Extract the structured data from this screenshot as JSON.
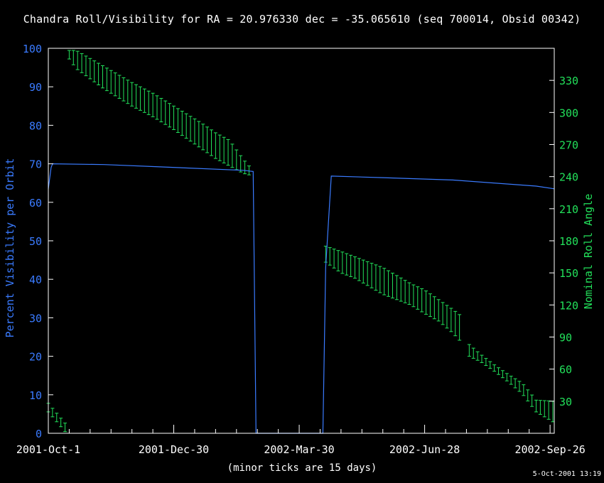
{
  "chart_data": {
    "type": "line",
    "title": "Chandra Roll/Visibility for RA = 20.976330 dec = -35.065610 (seq 700014, Obsid 00342)",
    "xlabel": "(minor ticks are 15 days)",
    "ylabel": "Percent Visibility per Orbit",
    "y2label": "Nominal Roll Angle",
    "timestamp": "5-Oct-2001 13:19",
    "x_ticks": [
      "2001-Oct-1",
      "2001-Dec-30",
      "2002-Mar-30",
      "2002-Jun-28",
      "2002-Sep-26"
    ],
    "x_tick_days": [
      0,
      90,
      180,
      270,
      360
    ],
    "x_minor_tick_days": 15,
    "xlim": [
      0,
      363
    ],
    "ylim": [
      0,
      100
    ],
    "y_ticks": [
      0,
      10,
      20,
      30,
      40,
      50,
      60,
      70,
      80,
      90,
      100
    ],
    "y2lim": [
      0,
      360
    ],
    "y2_ticks": [
      30,
      60,
      90,
      120,
      150,
      180,
      210,
      240,
      270,
      300,
      330
    ],
    "colors": {
      "visibility": "#3a7bff",
      "roll": "#22e05a",
      "frame": "#ffffff"
    },
    "series": [
      {
        "name": "Percent Visibility per Orbit",
        "axis": "left",
        "x": [
          0,
          2,
          3,
          40,
          80,
          140,
          147,
          149,
          197,
          199,
          203,
          240,
          290,
          350,
          363
        ],
        "values": [
          63.5,
          69,
          70,
          69.8,
          69.2,
          68.3,
          68,
          0,
          0,
          43,
          66.8,
          66.4,
          65.8,
          64.2,
          63.5
        ]
      },
      {
        "name": "Nominal Roll Angle",
        "axis": "right",
        "type": "errorbar",
        "segments": [
          {
            "x": [
              0,
              13
            ],
            "low": [
              20,
              0
            ],
            "high": [
              28,
              8
            ]
          },
          {
            "x": [
              15,
              20,
              40,
              60,
              75,
              80,
              90,
              100,
              110,
              120,
              130,
              140,
              146
            ],
            "low": [
              350,
              341,
              322,
              306,
              296,
              292,
              284,
              275,
              266,
              257,
              250,
              243,
              241
            ],
            "high": [
              358,
              358,
              343,
              328,
              318,
              314,
              306,
              298,
              290,
              281,
              274,
              256,
              247
            ]
          },
          {
            "x": [
              199,
              210,
              220,
              240,
              260,
              270,
              280,
              290,
              295
            ],
            "low": [
              160,
              150,
              145,
              130,
              120,
              112,
              105,
              94,
              87
            ],
            "high": [
              175,
              170,
              165,
              155,
              140,
              134,
              125,
              116,
              111
            ]
          },
          {
            "x": [
              302,
              310,
              320,
              330,
              340,
              350,
              363
            ],
            "low": [
              72,
              67,
              58,
              48,
              37,
              20,
              10
            ],
            "high": [
              83,
              74,
              64,
              55,
              47,
              31,
              30
            ]
          }
        ]
      }
    ]
  }
}
